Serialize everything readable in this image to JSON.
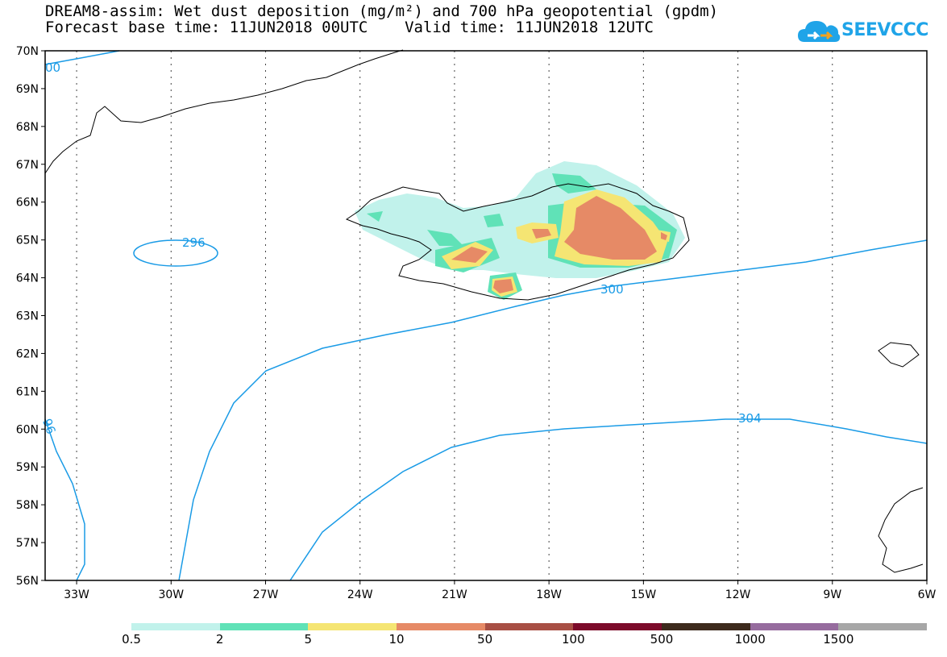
{
  "title_line1": "DREAM8-assim: Wet dust deposition (mg/m²) and 700 hPa geopotential (gpdm)",
  "title_line2": "Forecast base time: 11JUN2018 00UTC    Valid time: 11JUN2018 12UTC",
  "logo": {
    "text": "SEEVCCC",
    "icon": "cloud-icon",
    "color": "#1fa4e8"
  },
  "map": {
    "lon_range": [
      -34,
      -6
    ],
    "lat_range": [
      56,
      70
    ],
    "lat_labels": [
      "70N",
      "69N",
      "68N",
      "67N",
      "66N",
      "65N",
      "64N",
      "63N",
      "62N",
      "61N",
      "60N",
      "59N",
      "58N",
      "57N",
      "56N"
    ],
    "lon_labels": [
      "33W",
      "30W",
      "27W",
      "24W",
      "21W",
      "18W",
      "15W",
      "12W",
      "9W",
      "6W"
    ],
    "contour_color": "#1a9be6",
    "contour_labels": [
      "00",
      "296",
      "300",
      "96",
      "304"
    ]
  },
  "legend": {
    "colors": [
      "#c1f2eb",
      "#60e2b7",
      "#f5e573",
      "#e68a66",
      "#a84f44",
      "#7c0a2a",
      "#3d2a1d",
      "#966c9e",
      "#a7a7a7"
    ],
    "labels": [
      "0.5",
      "2",
      "5",
      "10",
      "50",
      "100",
      "500",
      "1000",
      "1500"
    ]
  }
}
